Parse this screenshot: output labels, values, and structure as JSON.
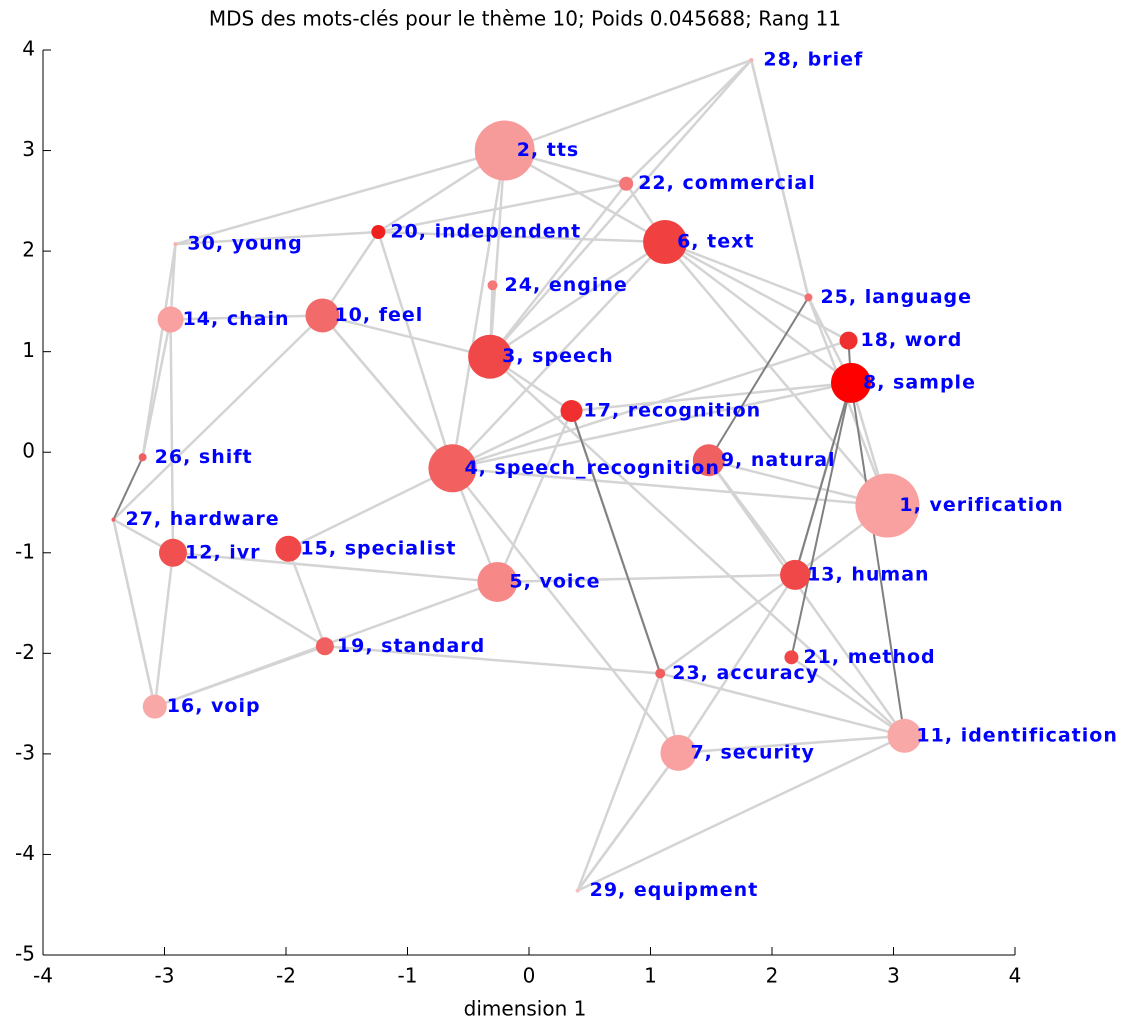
{
  "chart_data": {
    "type": "scatter",
    "title": "MDS des mots-clés pour le thème 10; Poids 0.045688; Rang 11",
    "xlabel": "dimension 1",
    "xlim": [
      -4,
      4
    ],
    "ylim": [
      -5,
      4
    ],
    "xticks": [
      -4,
      -3,
      -2,
      -1,
      0,
      1,
      2,
      3,
      4
    ],
    "yticks": [
      -5,
      -4,
      -3,
      -2,
      -1,
      0,
      1,
      2,
      3,
      4
    ],
    "labels": [
      "1, verification",
      "2, tts",
      "3, speech",
      "4, speech_recognition",
      "5, voice",
      "6, text",
      "7, security",
      "8, sample",
      "9, natural",
      "10, feel",
      "11, identification",
      "12, ivr",
      "13, human",
      "14, chain",
      "15, specialist",
      "16, voip",
      "17, recognition",
      "18, word",
      "19, standard",
      "20, independent",
      "21, method",
      "22, commercial",
      "23, accuracy",
      "24, engine",
      "25, language",
      "26, shift",
      "27, hardware",
      "28, brief",
      "29, equipment",
      "30, young"
    ],
    "x": [
      2.95,
      -0.2,
      -0.32,
      -0.63,
      -0.26,
      1.12,
      1.23,
      2.65,
      1.48,
      -1.7,
      3.09,
      -2.93,
      2.19,
      -2.95,
      -1.98,
      -3.08,
      0.35,
      2.63,
      -1.68,
      -1.24,
      2.16,
      0.8,
      1.08,
      -0.3,
      2.3,
      -3.18,
      -3.42,
      1.83,
      0.4,
      -2.91
    ],
    "y": [
      -0.53,
      3.0,
      0.95,
      -0.16,
      -1.29,
      2.09,
      -2.99,
      0.69,
      -0.08,
      1.36,
      -2.82,
      -1.0,
      -1.22,
      1.32,
      -0.96,
      -2.53,
      0.41,
      1.11,
      -1.93,
      2.19,
      -2.04,
      2.67,
      -2.2,
      1.66,
      1.54,
      -0.05,
      -0.67,
      3.9,
      -4.36,
      2.07
    ],
    "sizes": [
      32,
      30,
      22,
      24,
      20,
      22,
      18,
      20,
      16,
      17,
      17,
      14,
      15,
      13,
      13,
      12,
      11,
      9,
      9,
      7,
      7,
      7,
      5,
      5,
      4,
      4,
      2,
      2,
      2,
      2
    ],
    "colors": [
      "#f9a0a0",
      "#f79a9a",
      "#f04848",
      "#f26060",
      "#f78888",
      "#f04040",
      "#f9a0a0",
      "#ff0000",
      "#f06060",
      "#f36a6a",
      "#f9a8a8",
      "#f05050",
      "#f04848",
      "#f9a0a0",
      "#f04848",
      "#f9a8a8",
      "#f03030",
      "#f03030",
      "#f06060",
      "#f02020",
      "#f04848",
      "#f47878",
      "#f06060",
      "#f47878",
      "#f47070",
      "#f06060",
      "#f06060",
      "#f8b0b0",
      "#f8c0c0",
      "#f8b0b0"
    ],
    "edges": [
      [
        1,
        5
      ],
      [
        1,
        2
      ],
      [
        1,
        19
      ],
      [
        1,
        21
      ],
      [
        1,
        3
      ],
      [
        2,
        5
      ],
      [
        2,
        21
      ],
      [
        2,
        16
      ],
      [
        2,
        23
      ],
      [
        2,
        27
      ],
      [
        3,
        16
      ],
      [
        3,
        5
      ],
      [
        3,
        7
      ],
      [
        3,
        19
      ],
      [
        3,
        9
      ],
      [
        3,
        4
      ],
      [
        3,
        17
      ],
      [
        4,
        12
      ],
      [
        4,
        16
      ],
      [
        4,
        11
      ],
      [
        5,
        17
      ],
      [
        5,
        24
      ],
      [
        5,
        21
      ],
      [
        5,
        7
      ],
      [
        5,
        0
      ],
      [
        6,
        22
      ],
      [
        6,
        28
      ],
      [
        6,
        10
      ],
      [
        6,
        12
      ],
      [
        6,
        3
      ],
      [
        7,
        0
      ],
      [
        7,
        24
      ],
      [
        7,
        12
      ],
      [
        8,
        12
      ],
      [
        8,
        10
      ],
      [
        8,
        0
      ],
      [
        9,
        13
      ],
      [
        9,
        19
      ],
      [
        9,
        3
      ],
      [
        9,
        2
      ],
      [
        10,
        20
      ],
      [
        10,
        28
      ],
      [
        11,
        13
      ],
      [
        11,
        15
      ],
      [
        11,
        18
      ],
      [
        11,
        26
      ],
      [
        12,
        22
      ],
      [
        13,
        29
      ],
      [
        13,
        25
      ],
      [
        14,
        18
      ],
      [
        14,
        3
      ],
      [
        15,
        18
      ],
      [
        15,
        26
      ],
      [
        16,
        22
      ],
      [
        16,
        7
      ],
      [
        18,
        22
      ],
      [
        19,
        29
      ],
      [
        19,
        5
      ],
      [
        19,
        21
      ],
      [
        21,
        27
      ],
      [
        22,
        28
      ],
      [
        22,
        10
      ],
      [
        24,
        27
      ],
      [
        24,
        0
      ],
      [
        25,
        29
      ],
      [
        26,
        15
      ],
      [
        27,
        1
      ],
      [
        27,
        24
      ],
      [
        28,
        6
      ],
      [
        29,
        1
      ],
      [
        2,
        10
      ],
      [
        3,
        0
      ],
      [
        4,
        15
      ],
      [
        12,
        0
      ],
      [
        9,
        26
      ]
    ],
    "dark_edges": [
      [
        16,
        22
      ],
      [
        24,
        8
      ],
      [
        17,
        7
      ],
      [
        25,
        26
      ],
      [
        7,
        20
      ],
      [
        7,
        12
      ],
      [
        7,
        10
      ]
    ]
  }
}
